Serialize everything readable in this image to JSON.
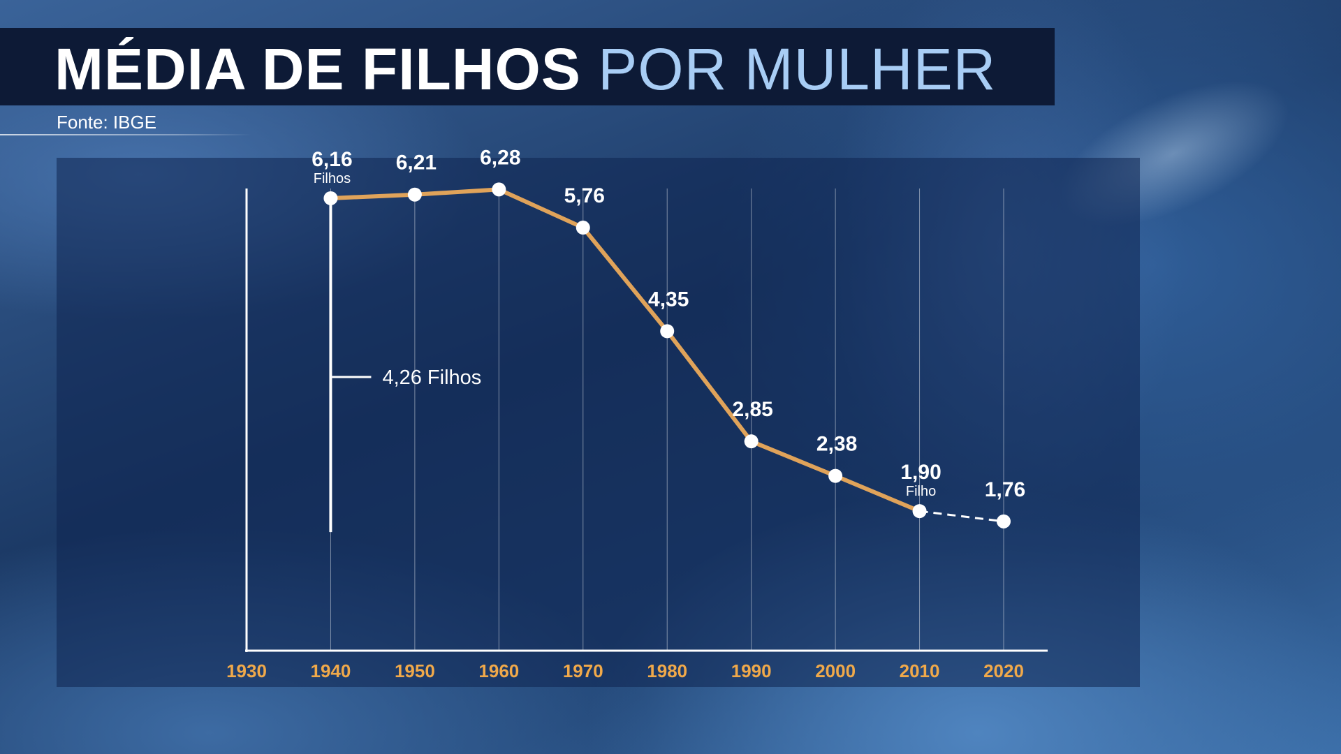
{
  "header": {
    "title_main": "MÉDIA DE FILHOS",
    "title_accent": "POR MULHER",
    "source": "Fonte: IBGE"
  },
  "chart_data": {
    "type": "line",
    "title": "MÉDIA DE FILHOS POR MULHER",
    "xlabel": "",
    "ylabel": "",
    "x_ticks": [
      "1930",
      "1940",
      "1950",
      "1960",
      "1970",
      "1980",
      "1990",
      "2000",
      "2010",
      "2020"
    ],
    "xlim": [
      1930,
      2020
    ],
    "ylim": [
      0,
      7
    ],
    "grid": "vertical",
    "legend": "none",
    "series": [
      {
        "x": [
          1940,
          1950,
          1960,
          1970,
          1980,
          1990,
          2000,
          2010,
          2020
        ],
        "y": [
          6.16,
          6.21,
          6.28,
          5.76,
          4.35,
          2.85,
          2.38,
          1.9,
          1.76
        ],
        "labels": [
          "6,16",
          "6,21",
          "6,28",
          "5,76",
          "4,35",
          "2,85",
          "2,38",
          "1,90",
          "1,76"
        ],
        "dashed_from": 2010,
        "color": "#e0a35a"
      }
    ],
    "point_units": [
      {
        "x": 1940,
        "text": "Filhos"
      },
      {
        "x": 2010,
        "text": "Filho"
      }
    ],
    "annotation": {
      "x": 1940,
      "from": 6.16,
      "to": 1.9,
      "text": "4,26 Filhos"
    }
  },
  "colors": {
    "line": "#e0a35a",
    "tick_label": "#f0a94a",
    "title_accent": "#a8cdf5",
    "title_bar": "#0d1a36"
  }
}
